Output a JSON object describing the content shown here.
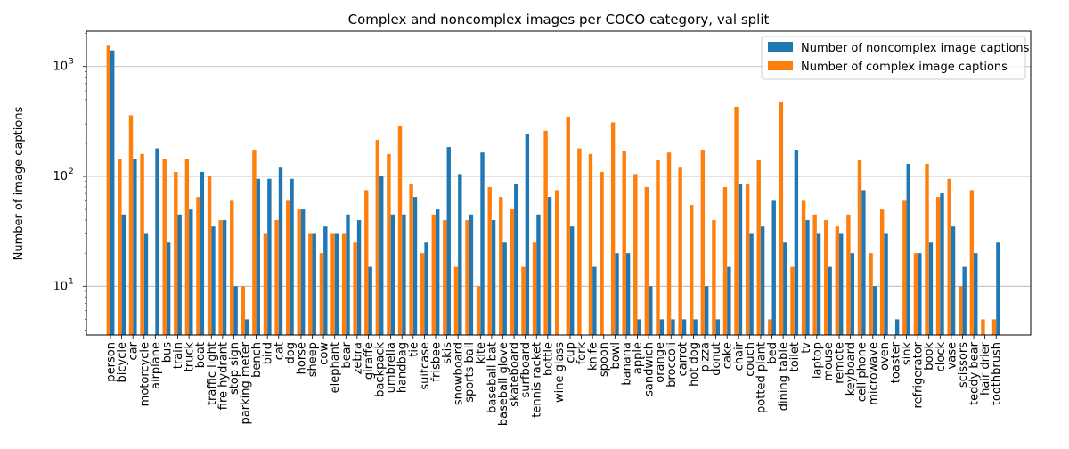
{
  "chart_data": {
    "type": "bar",
    "title": "Complex and noncomplex images per COCO category, val split",
    "xlabel": "",
    "ylabel": "Number of image captions",
    "yscale": "log",
    "ylim": [
      3.6,
      2100
    ],
    "yticks": [
      {
        "value": 10,
        "base": "10",
        "exp": "1"
      },
      {
        "value": 100,
        "base": "10",
        "exp": "2"
      },
      {
        "value": 1000,
        "base": "10",
        "exp": "3"
      }
    ],
    "grid": "y-major",
    "legend_position": "top-right",
    "categories": [
      "person",
      "bicycle",
      "car",
      "motorcycle",
      "airplane",
      "bus",
      "train",
      "truck",
      "boat",
      "traffic light",
      "fire hydrant",
      "stop sign",
      "parking meter",
      "bench",
      "bird",
      "cat",
      "dog",
      "horse",
      "sheep",
      "cow",
      "elephant",
      "bear",
      "zebra",
      "giraffe",
      "backpack",
      "umbrella",
      "handbag",
      "tie",
      "suitcase",
      "frisbee",
      "skis",
      "snowboard",
      "sports ball",
      "kite",
      "baseball bat",
      "baseball glove",
      "skateboard",
      "surfboard",
      "tennis racket",
      "bottle",
      "wine glass",
      "cup",
      "fork",
      "knife",
      "spoon",
      "bowl",
      "banana",
      "apple",
      "sandwich",
      "orange",
      "broccoli",
      "carrot",
      "hot dog",
      "pizza",
      "donut",
      "cake",
      "chair",
      "couch",
      "potted plant",
      "bed",
      "dining table",
      "toilet",
      "tv",
      "laptop",
      "mouse",
      "remote",
      "keyboard",
      "cell phone",
      "microwave",
      "oven",
      "toaster",
      "sink",
      "refrigerator",
      "book",
      "clock",
      "vase",
      "scissors",
      "teddy bear",
      "hair drier",
      "toothbrush"
    ],
    "series": [
      {
        "name": "Number of noncomplex image captions",
        "color": "#1f77b4",
        "values": [
          1400,
          45,
          145,
          30,
          180,
          25,
          45,
          50,
          110,
          35,
          40,
          10,
          5,
          95,
          95,
          120,
          95,
          50,
          30,
          35,
          30,
          45,
          40,
          15,
          100,
          45,
          45,
          65,
          25,
          50,
          185,
          105,
          45,
          165,
          40,
          25,
          85,
          245,
          45,
          65,
          0,
          35,
          0,
          15,
          0,
          20,
          20,
          5,
          10,
          5,
          5,
          5,
          5,
          10,
          5,
          15,
          85,
          30,
          35,
          60,
          25,
          175,
          40,
          30,
          15,
          30,
          20,
          75,
          10,
          30,
          5,
          130,
          20,
          25,
          70,
          35,
          15,
          20,
          0,
          25
        ]
      },
      {
        "name": "Number of complex image captions",
        "color": "#ff7f0e",
        "values": [
          1550,
          145,
          360,
          160,
          0,
          145,
          110,
          145,
          65,
          100,
          40,
          60,
          10,
          175,
          30,
          40,
          60,
          50,
          30,
          20,
          30,
          30,
          25,
          75,
          215,
          160,
          290,
          85,
          20,
          45,
          40,
          15,
          40,
          10,
          80,
          65,
          50,
          15,
          25,
          260,
          75,
          350,
          180,
          160,
          110,
          310,
          170,
          105,
          80,
          140,
          165,
          120,
          55,
          175,
          40,
          80,
          430,
          85,
          140,
          5,
          480,
          15,
          60,
          45,
          40,
          35,
          45,
          140,
          20,
          50,
          0,
          60,
          20,
          130,
          65,
          95,
          10,
          75,
          5,
          5
        ]
      }
    ]
  }
}
